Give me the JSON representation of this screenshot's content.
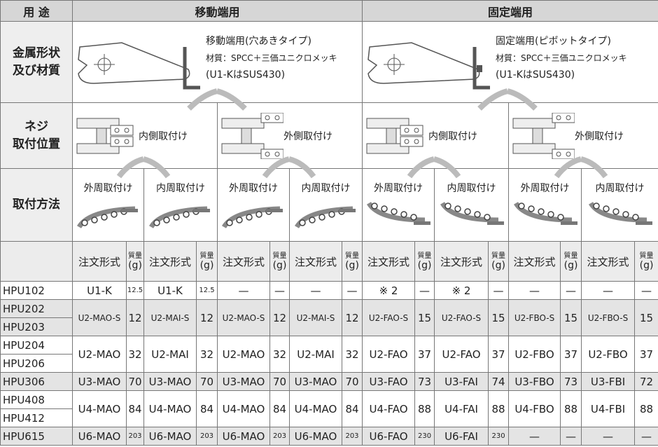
{
  "header": {
    "purpose": "用 途",
    "moving": "移動端用",
    "fixed": "固定端用"
  },
  "metal": {
    "label": [
      "金属形状",
      "及び材質"
    ],
    "moving": [
      "移動端用(穴あきタイプ)",
      "材質：SPCC＋三価ユニクロメッキ",
      "(U1-KはSUS430)"
    ],
    "fixed": [
      "固定端用(ピボットタイプ)",
      "材質：SPCC＋三価ユニクロメッキ",
      "(U1-KはSUS430)"
    ]
  },
  "screw": {
    "label": [
      "ネジ",
      "取付位置"
    ],
    "options": [
      "内側取付け",
      "外側取付け",
      "内側取付け",
      "外側取付け"
    ]
  },
  "method": {
    "label": "取付方法",
    "options": [
      "外周取付け",
      "内周取付け",
      "外周取付け",
      "内周取付け",
      "外周取付け",
      "内周取付け",
      "外周取付け",
      "内周取付け"
    ]
  },
  "columns": {
    "order": "注文形式",
    "weight": [
      "質量",
      "(g)"
    ]
  },
  "table": {
    "groups": [
      {
        "models": [
          "HPU102"
        ],
        "cells": [
          [
            "U1-K",
            "12.5"
          ],
          [
            "U1-K",
            "12.5"
          ],
          [
            "—",
            "—"
          ],
          [
            "—",
            "—"
          ],
          [
            "※ 2",
            "—"
          ],
          [
            "※ 2",
            "—"
          ],
          [
            "—",
            "—"
          ],
          [
            "—",
            "—"
          ]
        ]
      },
      {
        "models": [
          "HPU202",
          "HPU203"
        ],
        "cells": [
          [
            "U2-MAO-S",
            "12"
          ],
          [
            "U2-MAI-S",
            "12"
          ],
          [
            "U2-MAO-S",
            "12"
          ],
          [
            "U2-MAI-S",
            "12"
          ],
          [
            "U2-FAO-S",
            "15"
          ],
          [
            "U2-FAO-S",
            "15"
          ],
          [
            "U2-FBO-S",
            "15"
          ],
          [
            "U2-FBO-S",
            "15"
          ]
        ]
      },
      {
        "models": [
          "HPU204",
          "HPU206"
        ],
        "cells": [
          [
            "U2-MAO",
            "32"
          ],
          [
            "U2-MAI",
            "32"
          ],
          [
            "U2-MAO",
            "32"
          ],
          [
            "U2-MAI",
            "32"
          ],
          [
            "U2-FAO",
            "37"
          ],
          [
            "U2-FAO",
            "37"
          ],
          [
            "U2-FBO",
            "37"
          ],
          [
            "U2-FBO",
            "37"
          ]
        ]
      },
      {
        "models": [
          "HPU306"
        ],
        "cells": [
          [
            "U3-MAO",
            "70"
          ],
          [
            "U3-MAO",
            "70"
          ],
          [
            "U3-MAO",
            "70"
          ],
          [
            "U3-MAO",
            "70"
          ],
          [
            "U3-FAO",
            "73"
          ],
          [
            "U3-FAI",
            "74"
          ],
          [
            "U3-FBO",
            "73"
          ],
          [
            "U3-FBI",
            "72"
          ]
        ]
      },
      {
        "models": [
          "HPU408",
          "HPU412"
        ],
        "cells": [
          [
            "U4-MAO",
            "84"
          ],
          [
            "U4-MAO",
            "84"
          ],
          [
            "U4-MAO",
            "84"
          ],
          [
            "U4-MAO",
            "84"
          ],
          [
            "U4-FAO",
            "88"
          ],
          [
            "U4-FAI",
            "88"
          ],
          [
            "U4-FBO",
            "88"
          ],
          [
            "U4-FBI",
            "88"
          ]
        ]
      },
      {
        "models": [
          "HPU615"
        ],
        "cells": [
          [
            "U6-MAO",
            "203"
          ],
          [
            "U6-MAO",
            "203"
          ],
          [
            "U6-MAO",
            "203"
          ],
          [
            "U6-MAO",
            "203"
          ],
          [
            "U6-FAO",
            "230"
          ],
          [
            "U6-FAI",
            "230"
          ],
          [
            "—",
            "—"
          ],
          [
            "—",
            "—"
          ]
        ]
      }
    ]
  }
}
